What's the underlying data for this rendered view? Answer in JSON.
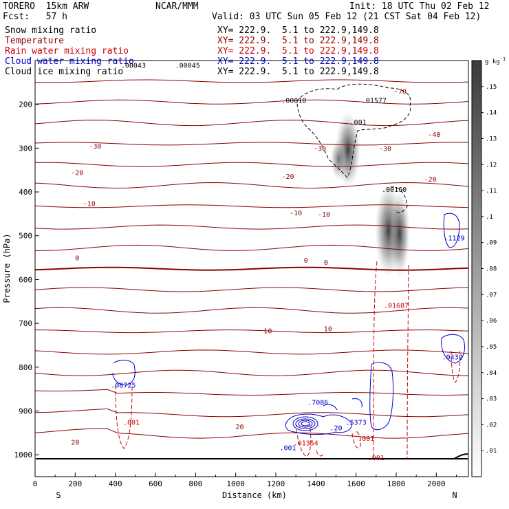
{
  "header": {
    "model": "TORERO  15km ARW",
    "org": "NCAR/MMM",
    "init": "Init: 18 UTC Thu 02 Feb 12",
    "fcst": "Fcst:   57 h",
    "valid": "Valid: 03 UTC Sun 05 Feb 12 (21 CST Sat 04 Feb 12)"
  },
  "legend": [
    {
      "name": "Snow mixing ratio",
      "coords": "XY= 222.9.  5.1 to 222.9,149.8",
      "color": "#000000"
    },
    {
      "name": "Temperature",
      "coords": "XY= 222.9.  5.1 to 222.9,149.8",
      "color": "#8b0000"
    },
    {
      "name": "Rain water mixing ratio",
      "coords": "XY= 222.9.  5.1 to 222.9,149.8",
      "color": "#cc0000"
    },
    {
      "name": "Cloud water mixing ratio",
      "coords": "XY= 222.9.  5.1 to 222.9,149.8",
      "color": "#0000cc"
    },
    {
      "name": "Cloud ice mixing ratio",
      "coords": "XY= 222.9.  5.1 to 222.9,149.8",
      "color": "#000000"
    }
  ],
  "chart_data": {
    "type": "cross-section contour",
    "xlabel": "Distance (km)",
    "ylabel": "Pressure (hPa)",
    "x_ticks": [
      "0",
      "200",
      "400",
      "600",
      "800",
      "1000",
      "1200",
      "1400",
      "1600",
      "1800",
      "2000"
    ],
    "y_ticks": [
      "200",
      "300",
      "400",
      "500",
      "600",
      "700",
      "800",
      "900",
      "1000"
    ],
    "x_endpoints": {
      "left": "S",
      "right": "N"
    },
    "xlim": [
      0,
      2160
    ],
    "ylim": [
      1050,
      100
    ],
    "colorbar": {
      "unit": "g kg",
      "unit_superscript": "-1",
      "ticks": [
        ".01",
        ".02",
        ".03",
        ".04",
        ".05",
        ".06",
        ".07",
        ".08",
        ".09",
        ".1",
        ".11",
        ".12",
        ".13",
        ".14",
        ".15"
      ]
    },
    "temperature_contours": [
      {
        "level": "-70",
        "label_x": 1820,
        "label_p": 170
      },
      {
        "level": "-40",
        "label_x": 1990,
        "label_p": 268
      },
      {
        "level": "-30",
        "label_x": 300,
        "label_p": 295
      },
      {
        "level": "-30",
        "label_x": 1420,
        "label_p": 300
      },
      {
        "level": "-30",
        "label_x": 1745,
        "label_p": 300
      },
      {
        "level": "-20",
        "label_x": 210,
        "label_p": 355
      },
      {
        "level": "-20",
        "label_x": 1260,
        "label_p": 364
      },
      {
        "level": "-20",
        "label_x": 1970,
        "label_p": 370
      },
      {
        "level": "-10",
        "label_x": 270,
        "label_p": 426
      },
      {
        "level": "-10",
        "label_x": 1300,
        "label_p": 447
      },
      {
        "level": "-10",
        "label_x": 1440,
        "label_p": 450
      },
      {
        "level": "0",
        "label_x": 210,
        "label_p": 550
      },
      {
        "level": "0",
        "label_x": 1350,
        "label_p": 555
      },
      {
        "level": "0",
        "label_x": 1450,
        "label_p": 560
      },
      {
        "level": "10",
        "label_x": 1160,
        "label_p": 716
      },
      {
        "level": "10",
        "label_x": 1460,
        "label_p": 712
      },
      {
        "level": "20",
        "label_x": 1020,
        "label_p": 935
      },
      {
        "level": "20",
        "label_x": 200,
        "label_p": 971
      }
    ],
    "max_labels": [
      {
        "text": ".00043",
        "x": 490,
        "p": 110,
        "color": "#000000"
      },
      {
        "text": ".00045",
        "x": 760,
        "p": 110,
        "color": "#000000"
      },
      {
        "text": ".00818",
        "x": 1290,
        "p": 190,
        "color": "#000000"
      },
      {
        "text": ".01577",
        "x": 1690,
        "p": 190,
        "color": "#000000"
      },
      {
        "text": ".001",
        "x": 1610,
        "p": 240,
        "color": "#000000"
      },
      {
        "text": ".00160",
        "x": 1790,
        "p": 394,
        "color": "#000000"
      },
      {
        "text": ".1129",
        "x": 2090,
        "p": 504,
        "color": "#0000cc"
      },
      {
        "text": ".01687",
        "x": 1800,
        "p": 658,
        "color": "#cc0000"
      },
      {
        "text": ".08725",
        "x": 440,
        "p": 840,
        "color": "#0000cc"
      },
      {
        "text": ".0432",
        "x": 2080,
        "p": 776,
        "color": "#0000cc"
      },
      {
        "text": ".7086",
        "x": 1410,
        "p": 880,
        "color": "#0000cc"
      },
      {
        "text": ".5373",
        "x": 1600,
        "p": 925,
        "color": "#0000cc"
      },
      {
        "text": ".01354",
        "x": 1350,
        "p": 972,
        "color": "#cc0000"
      },
      {
        "text": ".001",
        "x": 480,
        "p": 925,
        "color": "#cc0000"
      },
      {
        "text": ".001",
        "x": 1650,
        "p": 962,
        "color": "#cc0000"
      },
      {
        "text": ".001",
        "x": 1700,
        "p": 1006,
        "color": "#cc0000"
      },
      {
        "text": ".001",
        "x": 1260,
        "p": 983,
        "color": "#0000cc"
      },
      {
        "text": ".20",
        "x": 1500,
        "p": 938,
        "color": "#0000cc"
      }
    ]
  }
}
